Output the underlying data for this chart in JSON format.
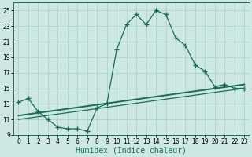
{
  "xlabel": "Humidex (Indice chaleur)",
  "bg_color": "#cce8e0",
  "grid_color": "#aad4cc",
  "line_color": "#1a6b5a",
  "xlim": [
    -0.5,
    23.5
  ],
  "ylim": [
    9,
    26
  ],
  "yticks": [
    9,
    11,
    13,
    15,
    17,
    19,
    21,
    23,
    25
  ],
  "xticks": [
    0,
    1,
    2,
    3,
    4,
    5,
    6,
    7,
    8,
    9,
    10,
    11,
    12,
    13,
    14,
    15,
    16,
    17,
    18,
    19,
    20,
    21,
    22,
    23
  ],
  "curve1_x": [
    0,
    1,
    2,
    3,
    4,
    5,
    6,
    7,
    8,
    9,
    10,
    11,
    12,
    13,
    14,
    15,
    16,
    17,
    18,
    19,
    20,
    21,
    22,
    23
  ],
  "curve1_y": [
    13.2,
    13.7,
    12.0,
    11.0,
    10.0,
    9.8,
    9.8,
    9.5,
    12.5,
    13.0,
    20.0,
    23.2,
    24.5,
    23.2,
    25.0,
    24.5,
    21.5,
    20.5,
    18.0,
    17.2,
    15.2,
    15.5,
    15.0,
    15.0
  ],
  "curve2_x": [
    0,
    23
  ],
  "curve2_y": [
    11.5,
    15.5
  ],
  "curve3_x": [
    0,
    23
  ],
  "curve3_y": [
    11.0,
    15.0
  ],
  "xlabel_fontsize": 7,
  "tick_fontsize": 5.5,
  "line_width": 1.0,
  "marker_size": 4.5
}
